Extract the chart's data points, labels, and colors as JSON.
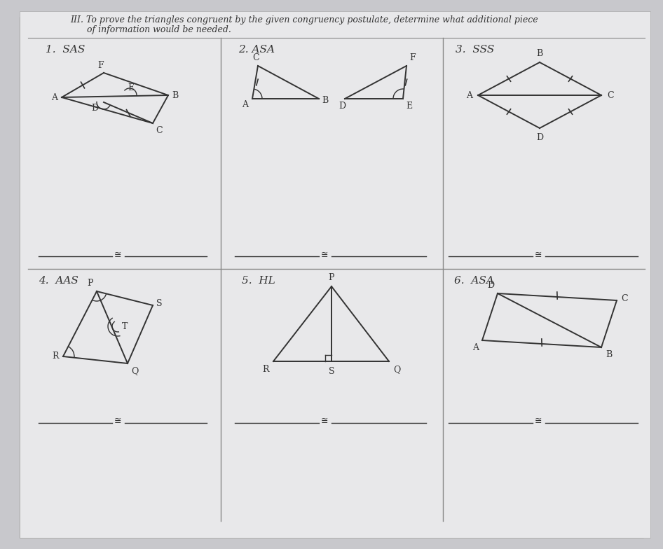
{
  "title_line1": "III. To prove the triangles congruent by the given congruency postulate, determine what additional piece",
  "title_line2": "      of information would be needed.",
  "bg_color": "#c8c8cc",
  "paper_color": "#e8e8ea",
  "line_color": "#333333",
  "grid_line_color": "#888888",
  "labels": {
    "1": "1.  SAS",
    "2": "2. ASA",
    "3": "3.  SSS",
    "4": "4.  AAS",
    "5": "5.  HL",
    "6": "6.  ASA"
  }
}
